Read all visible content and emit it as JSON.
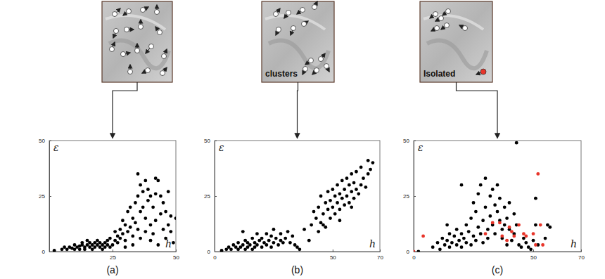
{
  "chart_data": [
    {
      "type": "scatter",
      "title": "(a)",
      "x_label": "h",
      "y_label": "ε",
      "xlim": [
        0,
        50
      ],
      "xticks": [
        25,
        50
      ],
      "ylim": [
        0,
        50
      ],
      "yticks": [
        0,
        25,
        50
      ],
      "series": [
        {
          "color": "#000000",
          "marker": "circle",
          "x": [
            2,
            5,
            6,
            7,
            8,
            9,
            10,
            10,
            11,
            12,
            12,
            13,
            13,
            14,
            14,
            15,
            15,
            16,
            16,
            17,
            17,
            18,
            18,
            19,
            19,
            20,
            20,
            21,
            21,
            22,
            22,
            23,
            23,
            24,
            24,
            25,
            26,
            26,
            27,
            27,
            28,
            28,
            29,
            29,
            30,
            30,
            31,
            31,
            32,
            32,
            33,
            33,
            34,
            34,
            35,
            35,
            35,
            36,
            36,
            36,
            37,
            37,
            38,
            38,
            39,
            39,
            40,
            40,
            40,
            41,
            41,
            42,
            42,
            43,
            43,
            44,
            44,
            45,
            45,
            46,
            46,
            47,
            47,
            48,
            48,
            49,
            50,
            38,
            42,
            33,
            30
          ],
          "values": [
            0.5,
            1,
            2,
            1,
            2,
            1.5,
            3,
            1,
            2,
            2.5,
            1,
            3,
            4,
            2,
            1,
            3,
            5,
            2,
            4,
            3,
            1,
            4,
            2,
            3,
            5,
            4,
            2,
            3,
            1,
            2,
            4,
            5,
            3,
            6,
            2,
            3,
            5,
            9,
            7,
            4,
            10,
            6,
            8,
            14,
            12,
            5,
            18,
            9,
            20,
            11,
            15,
            7,
            22,
            13,
            25,
            10,
            35,
            18,
            6,
            30,
            20,
            27,
            15,
            9,
            23,
            28,
            12,
            25,
            5,
            20,
            8,
            26,
            14,
            32,
            3,
            17,
            25,
            10,
            22,
            6,
            18,
            12,
            27,
            9,
            16,
            4,
            15,
            32,
            33,
            3,
            2
          ]
        }
      ]
    },
    {
      "type": "scatter",
      "title": "(b)",
      "x_label": "h",
      "y_label": "ε",
      "annotations": [
        "clusters"
      ],
      "xlim": [
        0,
        70
      ],
      "xticks": [
        0,
        50,
        70
      ],
      "ylim": [
        0,
        50
      ],
      "yticks": [
        0,
        25,
        50
      ],
      "series": [
        {
          "color": "#000000",
          "marker": "circle",
          "x": [
            3,
            5,
            6,
            7,
            8,
            9,
            10,
            10,
            11,
            12,
            12,
            13,
            13,
            14,
            14,
            15,
            16,
            16,
            17,
            17,
            18,
            18,
            19,
            20,
            20,
            21,
            22,
            22,
            23,
            24,
            24,
            25,
            25,
            26,
            27,
            28,
            28,
            29,
            30,
            31,
            32,
            33,
            34,
            35,
            36,
            38,
            40,
            41,
            42,
            43,
            44,
            45,
            45,
            46,
            47,
            47,
            48,
            48,
            49,
            49,
            50,
            50,
            51,
            51,
            52,
            52,
            53,
            53,
            54,
            54,
            55,
            55,
            56,
            56,
            57,
            57,
            58,
            58,
            59,
            59,
            60,
            60,
            61,
            62,
            62,
            63,
            64,
            65,
            65,
            66,
            67,
            44,
            46,
            53,
            58
          ],
          "values": [
            0.5,
            1,
            2,
            1,
            3,
            2,
            1,
            4,
            2,
            3,
            9,
            1,
            5,
            2,
            4,
            3,
            6,
            1,
            2,
            4,
            8,
            3,
            5,
            2,
            6,
            4,
            3,
            8,
            5,
            2,
            7,
            10,
            4,
            6,
            3,
            8,
            5,
            4,
            6,
            9,
            4,
            7,
            3,
            2,
            1,
            10,
            5,
            12,
            18,
            15,
            20,
            13,
            25,
            17,
            22,
            11,
            19,
            27,
            15,
            23,
            20,
            28,
            17,
            25,
            22,
            30,
            19,
            26,
            24,
            32,
            21,
            28,
            25,
            33,
            22,
            30,
            27,
            35,
            24,
            31,
            28,
            36,
            26,
            30,
            38,
            33,
            29,
            41,
            35,
            37,
            40,
            9,
            12,
            14,
            20
          ]
        }
      ]
    },
    {
      "type": "scatter",
      "title": "(c)",
      "x_label": "h",
      "y_label": "ε",
      "annotations": [
        "Isolated"
      ],
      "xlim": [
        0,
        70
      ],
      "xticks": [
        0,
        50,
        70
      ],
      "ylim": [
        0,
        50
      ],
      "yticks": [
        0,
        25,
        50
      ],
      "series": [
        {
          "color": "#000000",
          "marker": "circle",
          "x": [
            2,
            8,
            10,
            11,
            12,
            13,
            14,
            15,
            15,
            16,
            17,
            18,
            18,
            19,
            20,
            20,
            21,
            22,
            22,
            23,
            24,
            24,
            25,
            25,
            26,
            26,
            27,
            27,
            28,
            28,
            29,
            29,
            30,
            30,
            31,
            31,
            32,
            32,
            33,
            33,
            34,
            34,
            35,
            35,
            36,
            36,
            37,
            37,
            38,
            38,
            39,
            39,
            40,
            40,
            41,
            42,
            42,
            43,
            44,
            45,
            46,
            47,
            48,
            49,
            50,
            51,
            51,
            52,
            55,
            56,
            57,
            43,
            20,
            14
          ],
          "values": [
            0,
            2,
            4,
            1,
            6,
            3,
            5,
            2,
            8,
            4,
            7,
            3,
            10,
            5,
            2,
            8,
            6,
            4,
            12,
            9,
            3,
            15,
            7,
            22,
            5,
            18,
            11,
            26,
            8,
            30,
            14,
            4,
            20,
            33,
            10,
            6,
            25,
            16,
            28,
            12,
            8,
            21,
            18,
            30,
            14,
            24,
            10,
            6,
            20,
            12,
            15,
            3,
            22,
            10,
            5,
            17,
            8,
            12,
            3,
            2,
            6,
            4,
            2,
            1,
            5,
            24,
            12,
            3,
            6,
            12,
            11,
            49,
            30,
            12
          ]
        },
        {
          "color": "#e8352a",
          "marker": "circle",
          "x": [
            0,
            4,
            30,
            33,
            36,
            37,
            39,
            40,
            41,
            42,
            44,
            46,
            47,
            50,
            52,
            53,
            54,
            51
          ],
          "values": [
            0,
            7,
            8,
            13,
            13,
            7,
            5,
            11,
            9,
            7,
            12,
            8,
            7,
            8,
            35,
            12,
            3,
            3
          ]
        }
      ]
    }
  ]
}
